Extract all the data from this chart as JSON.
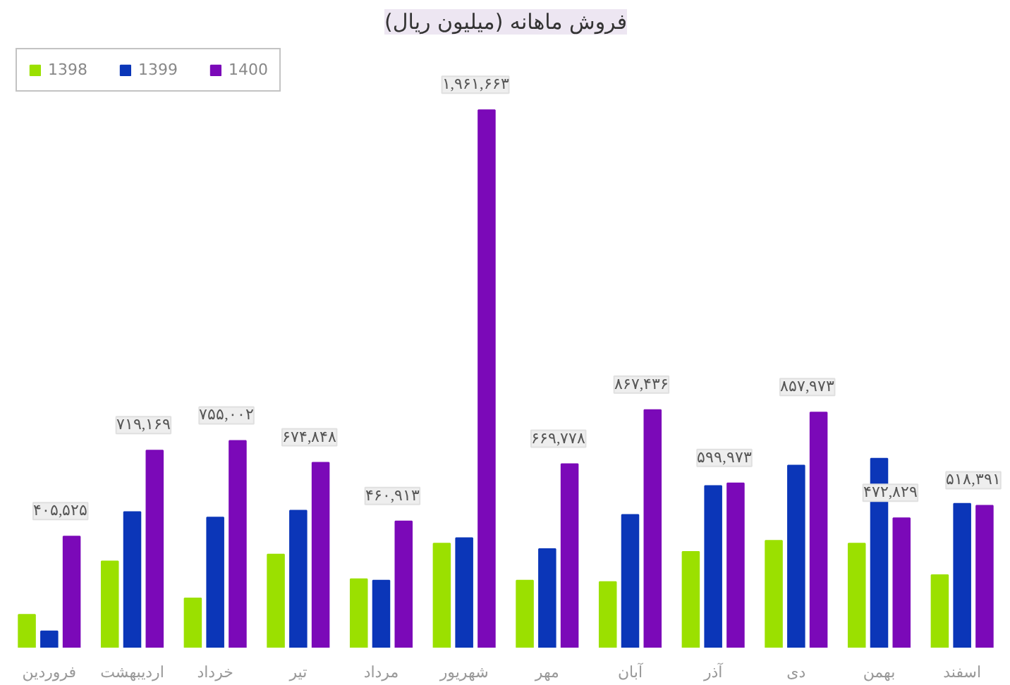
{
  "chart_data": {
    "type": "bar",
    "title": "فروش ماهانه (میلیون ریال)",
    "categories": [
      "فروردین",
      "اردیبهشت",
      "خرداد",
      "تیر",
      "مرداد",
      "شهریور",
      "مهر",
      "آبان",
      "آذر",
      "دی",
      "بهمن",
      "اسفند"
    ],
    "series": [
      {
        "name": "1398",
        "color": "#9be000",
        "values": [
          120000,
          315000,
          180000,
          340000,
          250000,
          380000,
          245000,
          240000,
          350000,
          390000,
          380000,
          265000
        ]
      },
      {
        "name": "1399",
        "color": "#0b36b8",
        "values": [
          60000,
          495000,
          475000,
          500000,
          245000,
          400000,
          360000,
          485000,
          590000,
          665000,
          690000,
          525000
        ]
      },
      {
        "name": "1400",
        "color": "#7b09b8",
        "values": [
          405525,
          719169,
          755002,
          674848,
          460913,
          1961663,
          669778,
          867436,
          599973,
          857973,
          472829,
          518391
        ],
        "value_labels": [
          "۴۰۵,۵۲۵",
          "۷۱۹,۱۶۹",
          "۷۵۵,۰۰۲",
          "۶۷۴,۸۴۸",
          "۴۶۰,۹۱۳",
          "۱,۹۶۱,۶۶۳",
          "۶۶۹,۷۷۸",
          "۸۶۷,۴۳۶",
          "۵۹۹,۹۷۳",
          "۸۵۷,۹۷۳",
          "۴۷۲,۸۲۹",
          "۵۱۸,۳۹۱"
        ]
      }
    ],
    "legend": "top left",
    "grid": false,
    "tick_labels": "x"
  }
}
